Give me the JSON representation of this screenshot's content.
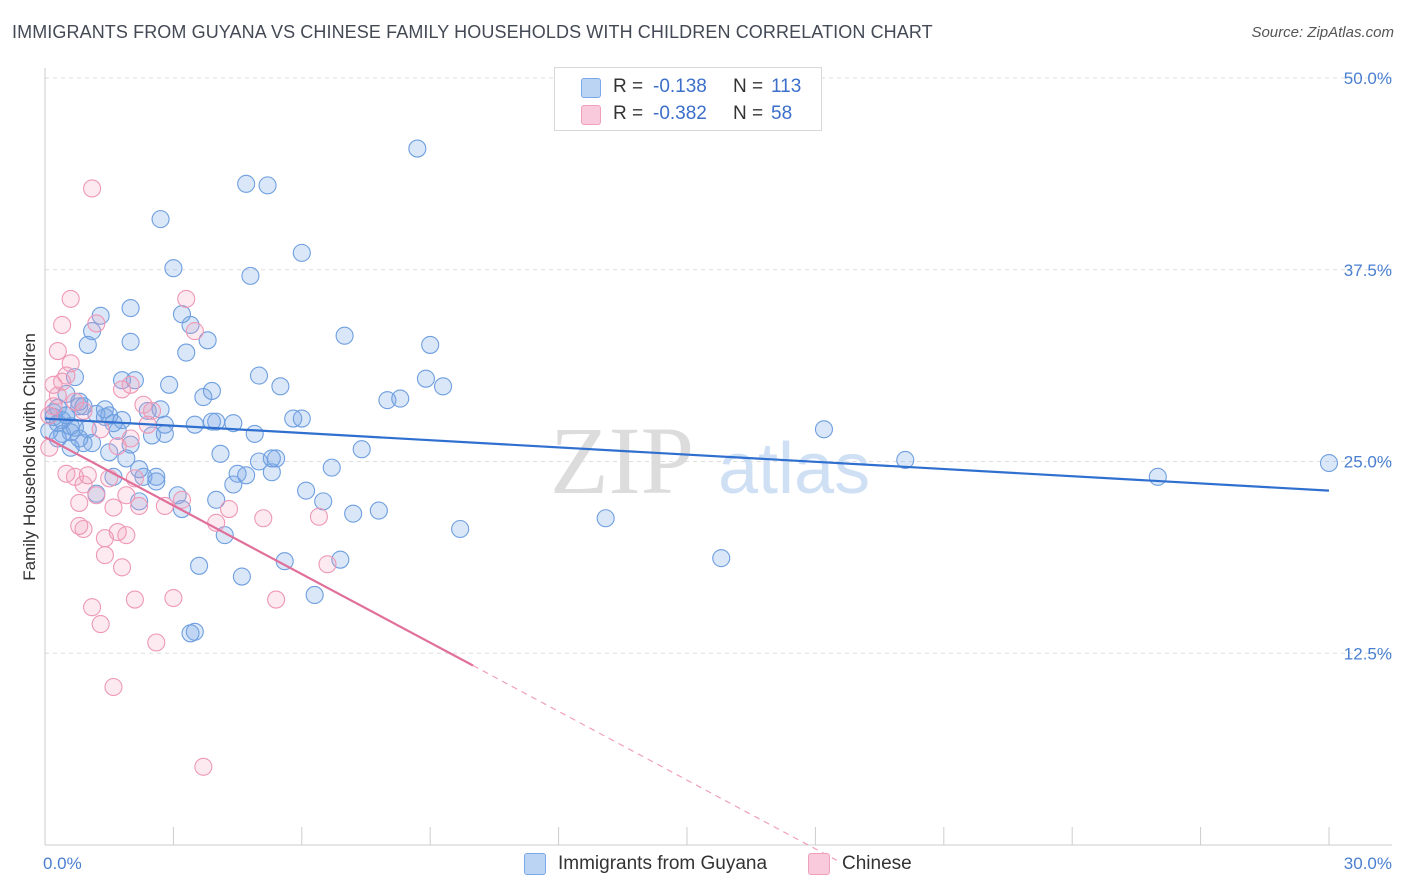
{
  "title": "IMMIGRANTS FROM GUYANA VS CHINESE FAMILY HOUSEHOLDS WITH CHILDREN CORRELATION CHART",
  "source": "Source: ZipAtlas.com",
  "watermark": {
    "zip": "ZIP",
    "atlas": "atlas"
  },
  "colors": {
    "blue": "#7aa8e6",
    "blue_line": "#2f6fcf",
    "pink": "#f0a0bb",
    "pink_line": "#e0709a",
    "tick": "#4a7fd0"
  },
  "legend": {
    "r_label": "R =",
    "n_label": "N =",
    "blue": {
      "r": "-0.138",
      "n": "113"
    },
    "pink": {
      "r": "-0.382",
      "n": "58"
    }
  },
  "bottom_legend": {
    "blue": "Immigrants from Guyana",
    "pink": "Chinese"
  },
  "chart_data": {
    "type": "scatter",
    "title": "IMMIGRANTS FROM GUYANA VS CHINESE FAMILY HOUSEHOLDS WITH CHILDREN CORRELATION CHART",
    "xlabel": "",
    "ylabel": "Family Households with Children",
    "xlim": [
      0,
      30
    ],
    "ylim": [
      0,
      50
    ],
    "x_tick_labels": [
      "0.0%",
      "30.0%"
    ],
    "y_ticks": [
      12.5,
      25.0,
      37.5,
      50.0
    ],
    "y_tick_labels": [
      "12.5%",
      "25.0%",
      "37.5%",
      "50.0%"
    ],
    "series": [
      {
        "name": "Immigrants from Guyana",
        "color": "#7aa8e6",
        "r": -0.138,
        "n": 113,
        "trend": {
          "x": [
            0,
            30
          ],
          "y": [
            27.8,
            23.1
          ]
        },
        "points": [
          [
            0.1,
            27.0
          ],
          [
            0.2,
            28.2
          ],
          [
            0.3,
            27.5
          ],
          [
            0.4,
            26.8
          ],
          [
            0.5,
            28.0
          ],
          [
            0.6,
            27.3
          ],
          [
            0.7,
            30.5
          ],
          [
            0.8,
            28.6
          ],
          [
            0.9,
            26.2
          ],
          [
            1.0,
            27.1
          ],
          [
            0.2,
            27.9
          ],
          [
            0.3,
            28.5
          ],
          [
            0.5,
            29.4
          ],
          [
            0.6,
            26.9
          ],
          [
            0.8,
            28.9
          ],
          [
            1.0,
            32.6
          ],
          [
            1.1,
            33.5
          ],
          [
            1.2,
            28.1
          ],
          [
            1.3,
            34.5
          ],
          [
            1.4,
            27.9
          ],
          [
            1.5,
            25.6
          ],
          [
            1.6,
            24.0
          ],
          [
            1.7,
            27.0
          ],
          [
            1.8,
            27.7
          ],
          [
            1.9,
            25.2
          ],
          [
            2.0,
            32.8
          ],
          [
            2.0,
            35.0
          ],
          [
            2.1,
            30.3
          ],
          [
            2.2,
            22.4
          ],
          [
            2.3,
            24.0
          ],
          [
            2.4,
            28.3
          ],
          [
            2.5,
            26.7
          ],
          [
            2.6,
            23.7
          ],
          [
            2.7,
            40.8
          ],
          [
            2.8,
            27.4
          ],
          [
            2.9,
            30.0
          ],
          [
            3.0,
            37.6
          ],
          [
            3.1,
            22.8
          ],
          [
            3.2,
            21.9
          ],
          [
            3.3,
            32.1
          ],
          [
            3.4,
            33.9
          ],
          [
            3.5,
            27.4
          ],
          [
            3.6,
            18.2
          ],
          [
            3.7,
            29.2
          ],
          [
            3.8,
            32.9
          ],
          [
            3.9,
            29.6
          ],
          [
            4.0,
            27.6
          ],
          [
            4.1,
            25.5
          ],
          [
            4.2,
            20.2
          ],
          [
            4.4,
            27.5
          ],
          [
            4.5,
            24.2
          ],
          [
            4.6,
            17.5
          ],
          [
            4.7,
            43.1
          ],
          [
            4.8,
            37.1
          ],
          [
            4.9,
            26.8
          ],
          [
            5.0,
            25.0
          ],
          [
            5.2,
            43.0
          ],
          [
            5.3,
            24.3
          ],
          [
            5.4,
            25.2
          ],
          [
            5.5,
            29.9
          ],
          [
            5.6,
            18.5
          ],
          [
            5.8,
            27.8
          ],
          [
            6.0,
            38.6
          ],
          [
            6.1,
            23.1
          ],
          [
            6.3,
            16.3
          ],
          [
            6.5,
            22.4
          ],
          [
            6.7,
            24.6
          ],
          [
            6.9,
            18.6
          ],
          [
            7.0,
            33.2
          ],
          [
            7.2,
            21.6
          ],
          [
            7.4,
            25.8
          ],
          [
            7.8,
            21.8
          ],
          [
            8.0,
            29.0
          ],
          [
            8.3,
            29.1
          ],
          [
            8.7,
            45.4
          ],
          [
            8.9,
            30.4
          ],
          [
            9.0,
            32.6
          ],
          [
            9.3,
            29.9
          ],
          [
            9.7,
            20.6
          ],
          [
            13.1,
            21.3
          ],
          [
            15.8,
            18.7
          ],
          [
            18.2,
            27.1
          ],
          [
            20.1,
            25.1
          ],
          [
            26.0,
            24.0
          ],
          [
            30.0,
            24.9
          ],
          [
            1.1,
            26.2
          ],
          [
            0.4,
            27.7
          ],
          [
            0.7,
            27.2
          ],
          [
            1.8,
            30.3
          ],
          [
            2.7,
            28.4
          ],
          [
            3.5,
            13.9
          ],
          [
            4.4,
            23.5
          ],
          [
            5.3,
            25.2
          ],
          [
            0.3,
            26.5
          ],
          [
            1.2,
            22.9
          ],
          [
            0.9,
            28.6
          ],
          [
            1.5,
            28.0
          ],
          [
            2.2,
            24.5
          ],
          [
            2.6,
            24.0
          ],
          [
            3.2,
            34.6
          ],
          [
            3.9,
            27.6
          ],
          [
            0.6,
            25.9
          ],
          [
            1.6,
            27.5
          ],
          [
            2.0,
            26.1
          ],
          [
            2.8,
            26.8
          ],
          [
            3.4,
            13.8
          ],
          [
            4.0,
            22.5
          ],
          [
            4.7,
            24.1
          ],
          [
            5.0,
            30.6
          ],
          [
            6.0,
            27.8
          ],
          [
            0.5,
            28.0
          ],
          [
            0.8,
            26.5
          ],
          [
            1.4,
            28.4
          ]
        ]
      },
      {
        "name": "Chinese",
        "color": "#f0a0bb",
        "r": -0.382,
        "n": 58,
        "trend": {
          "x": [
            0,
            10
          ],
          "y": [
            26.6,
            11.7
          ]
        },
        "trend_dashed": {
          "x": [
            10,
            18.5
          ],
          "y": [
            11.7,
            -1.0
          ]
        },
        "points": [
          [
            0.1,
            25.9
          ],
          [
            0.2,
            30.0
          ],
          [
            0.3,
            29.3
          ],
          [
            0.4,
            33.9
          ],
          [
            0.5,
            30.6
          ],
          [
            0.6,
            35.6
          ],
          [
            0.7,
            28.9
          ],
          [
            0.8,
            22.3
          ],
          [
            0.9,
            20.6
          ],
          [
            1.0,
            24.1
          ],
          [
            1.1,
            15.5
          ],
          [
            1.2,
            34.0
          ],
          [
            1.3,
            14.4
          ],
          [
            1.4,
            18.9
          ],
          [
            1.5,
            23.9
          ],
          [
            1.6,
            22.0
          ],
          [
            1.7,
            20.4
          ],
          [
            1.8,
            18.1
          ],
          [
            1.9,
            20.2
          ],
          [
            2.0,
            30.0
          ],
          [
            2.1,
            16.0
          ],
          [
            2.2,
            22.1
          ],
          [
            2.3,
            28.7
          ],
          [
            2.5,
            28.3
          ],
          [
            2.6,
            13.2
          ],
          [
            2.8,
            22.1
          ],
          [
            3.0,
            16.1
          ],
          [
            3.2,
            22.5
          ],
          [
            3.3,
            35.6
          ],
          [
            3.5,
            33.5
          ],
          [
            3.7,
            5.1
          ],
          [
            4.0,
            21.0
          ],
          [
            4.3,
            21.9
          ],
          [
            5.1,
            21.3
          ],
          [
            5.4,
            16.0
          ],
          [
            6.4,
            21.4
          ],
          [
            6.6,
            18.3
          ],
          [
            0.2,
            28.6
          ],
          [
            0.3,
            32.2
          ],
          [
            0.5,
            24.2
          ],
          [
            0.6,
            31.4
          ],
          [
            0.7,
            24.0
          ],
          [
            0.8,
            20.8
          ],
          [
            0.9,
            23.5
          ],
          [
            1.1,
            42.8
          ],
          [
            1.2,
            22.8
          ],
          [
            1.4,
            20.0
          ],
          [
            1.6,
            10.3
          ],
          [
            1.7,
            26.0
          ],
          [
            1.9,
            22.8
          ],
          [
            2.1,
            23.9
          ],
          [
            2.4,
            27.4
          ],
          [
            0.1,
            28.0
          ],
          [
            0.4,
            30.2
          ],
          [
            0.9,
            28.3
          ],
          [
            1.3,
            27.1
          ],
          [
            1.8,
            29.7
          ],
          [
            2.0,
            26.5
          ]
        ]
      }
    ]
  }
}
